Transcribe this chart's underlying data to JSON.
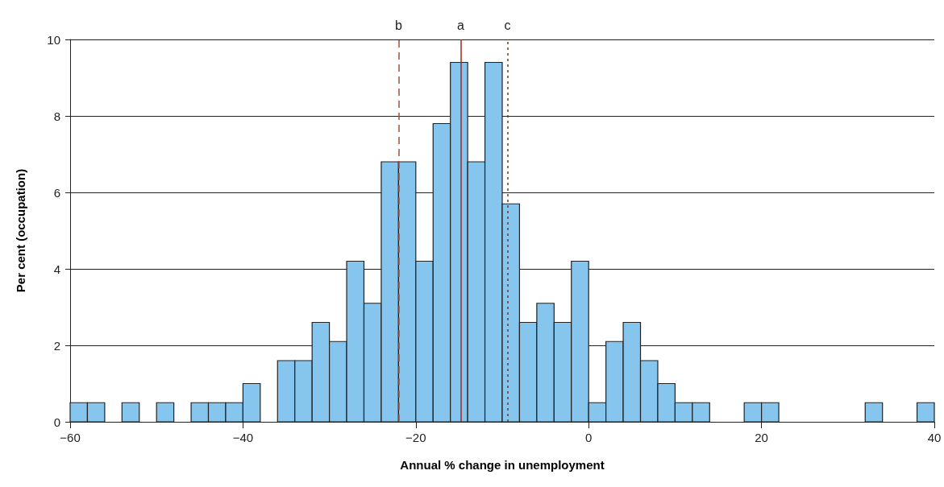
{
  "chart_data": {
    "type": "histogram",
    "xlabel": "Annual % change in unemployment",
    "ylabel": "Per cent (occupation)",
    "bins": [
      -60,
      -58,
      -56,
      -54,
      -52,
      -50,
      -48,
      -46,
      -44,
      -42,
      -40,
      -38,
      -36,
      -34,
      -32,
      -30,
      -28,
      -26,
      -24,
      -22,
      -20,
      -18,
      -16,
      -14,
      -12,
      -10,
      -8,
      -6,
      -4,
      -2,
      0,
      2,
      4,
      6,
      8,
      10,
      12,
      14,
      16,
      18,
      20,
      22,
      24,
      26,
      28,
      30,
      32,
      34,
      36,
      38,
      40
    ],
    "values": [
      0.5,
      0.5,
      0,
      0.5,
      0,
      0.5,
      0,
      0.5,
      0.5,
      0.5,
      1,
      0,
      1.6,
      1.6,
      2.6,
      2.1,
      4.2,
      3.1,
      6.8,
      6.8,
      4.2,
      7.8,
      9.4,
      6.8,
      9.4,
      5.7,
      2.6,
      3.1,
      2.6,
      4.2,
      0.5,
      2.1,
      2.6,
      1.6,
      1,
      0.5,
      0.5,
      0,
      0,
      0.5,
      0.5,
      0,
      0,
      0,
      0,
      0,
      0.5,
      0,
      0,
      0.5
    ],
    "color": "#85c5ee",
    "xlim": [
      -60,
      40
    ],
    "xticks": [
      {
        "value": -60,
        "label": "−60"
      },
      {
        "value": -40,
        "label": "−40"
      },
      {
        "value": -20,
        "label": "−20"
      },
      0,
      20,
      40
    ],
    "ylim": [
      0,
      10
    ],
    "yticks": [
      0,
      2,
      4,
      6,
      8,
      10
    ],
    "grid": "y",
    "ref_lines": [
      {
        "axis": "x",
        "value": -14.8,
        "label": "a",
        "color": "#a0281e",
        "line_style": "solid"
      },
      {
        "axis": "x",
        "value": -22,
        "label": "b",
        "color": "#a0523c",
        "line_style": "dashed"
      },
      {
        "axis": "x",
        "value": -9.4,
        "label": "c",
        "color": "#6e3a2c",
        "line_style": "dotted"
      }
    ]
  }
}
